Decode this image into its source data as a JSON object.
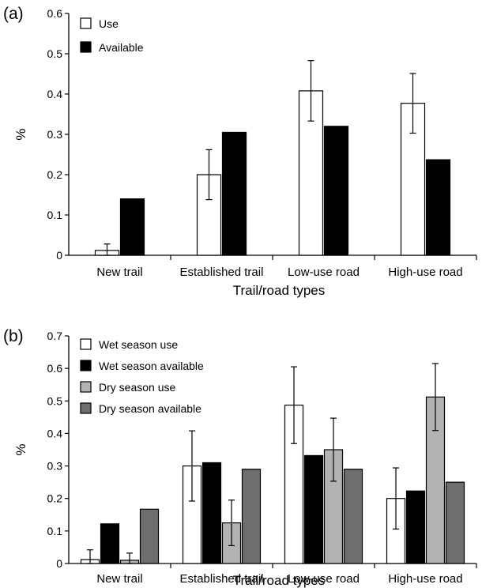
{
  "chart_data": [
    {
      "type": "bar",
      "panel_label": "(a)",
      "categories": [
        "New trail",
        "Established trail",
        "Low-use road",
        "High-use road"
      ],
      "series": [
        {
          "name": "Use",
          "color": "#ffffff",
          "values": [
            0.012,
            0.2,
            0.408,
            0.377
          ],
          "errors": [
            0.016,
            0.062,
            0.075,
            0.074
          ]
        },
        {
          "name": "Available",
          "color": "#000000",
          "values": [
            0.14,
            0.305,
            0.32,
            0.237
          ],
          "errors": [
            null,
            null,
            null,
            null
          ]
        }
      ],
      "xlabel": "Trail/road types",
      "ylabel": "%",
      "ylim": [
        0,
        0.6
      ],
      "yticks": [
        0,
        0.1,
        0.2,
        0.3,
        0.4,
        0.5,
        0.6
      ],
      "ytick_labels": [
        "0",
        "0.1",
        "0.2",
        "0.3",
        "0.4",
        "0.5",
        "0.6"
      ],
      "legend_position": "top-left",
      "grid": false
    },
    {
      "type": "bar",
      "panel_label": "(b)",
      "categories": [
        "New trail",
        "Established trail",
        "Low-use road",
        "High-use road"
      ],
      "series": [
        {
          "name": "Wet season use",
          "color": "#ffffff",
          "values": [
            0.012,
            0.3,
            0.487,
            0.2
          ],
          "errors": [
            0.03,
            0.108,
            0.118,
            0.094
          ]
        },
        {
          "name": "Wet season available",
          "color": "#000000",
          "values": [
            0.122,
            0.31,
            0.332,
            0.223
          ],
          "errors": [
            null,
            null,
            null,
            null
          ]
        },
        {
          "name": "Dry season use",
          "color": "#b3b3b3",
          "values": [
            0.01,
            0.125,
            0.35,
            0.512
          ],
          "errors": [
            0.022,
            0.07,
            0.097,
            0.103
          ]
        },
        {
          "name": "Dry season available",
          "color": "#6e6e6e",
          "values": [
            0.167,
            0.29,
            0.29,
            0.25
          ],
          "errors": [
            null,
            null,
            null,
            null
          ]
        }
      ],
      "xlabel": "Trail/road types",
      "ylabel": "%",
      "ylim": [
        0,
        0.7
      ],
      "yticks": [
        0,
        0.1,
        0.2,
        0.3,
        0.4,
        0.5,
        0.6,
        0.7
      ],
      "ytick_labels": [
        "0",
        "0.1",
        "0.2",
        "0.3",
        "0.4",
        "0.5",
        "0.6",
        "0.7"
      ],
      "legend_position": "top-left",
      "grid": false
    }
  ]
}
